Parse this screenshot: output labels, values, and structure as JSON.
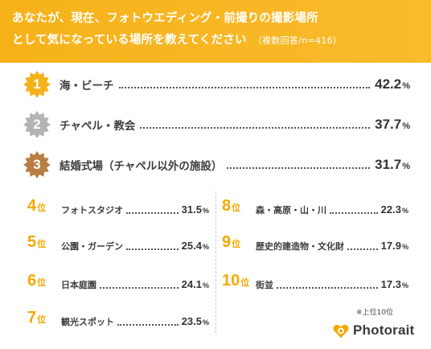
{
  "header": {
    "line1": "あなたが、現在、フォトウエディング・前撮りの撮影場所",
    "line2": "として気になっている場所を教えてください",
    "note": "（複数回答/n=416）"
  },
  "colors": {
    "brand": "#f7b21a",
    "gold": "#f3b21c",
    "silver": "#b3b3b3",
    "bronze": "#b87e44",
    "rank": "#f5a700"
  },
  "top3": [
    {
      "rank": "1",
      "label": "海・ビーチ",
      "value": "42.2",
      "unit": "%"
    },
    {
      "rank": "2",
      "label": "チャペル・教会",
      "value": "37.7",
      "unit": "%"
    },
    {
      "rank": "3",
      "label": "結婚式場（チャペル以外の施設）",
      "value": "31.7",
      "unit": "%"
    }
  ],
  "rank_suffix": "位",
  "left_list": [
    {
      "rank": "4",
      "label": "フォトスタジオ",
      "value": "31.5",
      "unit": "%"
    },
    {
      "rank": "5",
      "label": "公園・ガーデン",
      "value": "25.4",
      "unit": "%"
    },
    {
      "rank": "6",
      "label": "日本庭園",
      "value": "24.1",
      "unit": "%"
    },
    {
      "rank": "7",
      "label": "観光スポット",
      "value": "23.5",
      "unit": "%"
    }
  ],
  "right_list": [
    {
      "rank": "8",
      "label": "森・高原・山・川",
      "value": "22.3",
      "unit": "%"
    },
    {
      "rank": "9",
      "label": "歴史的建造物・文化財",
      "value": "17.9",
      "unit": "%"
    },
    {
      "rank": "10",
      "label": "街並",
      "value": "17.3",
      "unit": "%"
    }
  ],
  "footnote": "※上位10位",
  "logo": {
    "text": "Photorait",
    "icon": "heart-camera-icon"
  }
}
